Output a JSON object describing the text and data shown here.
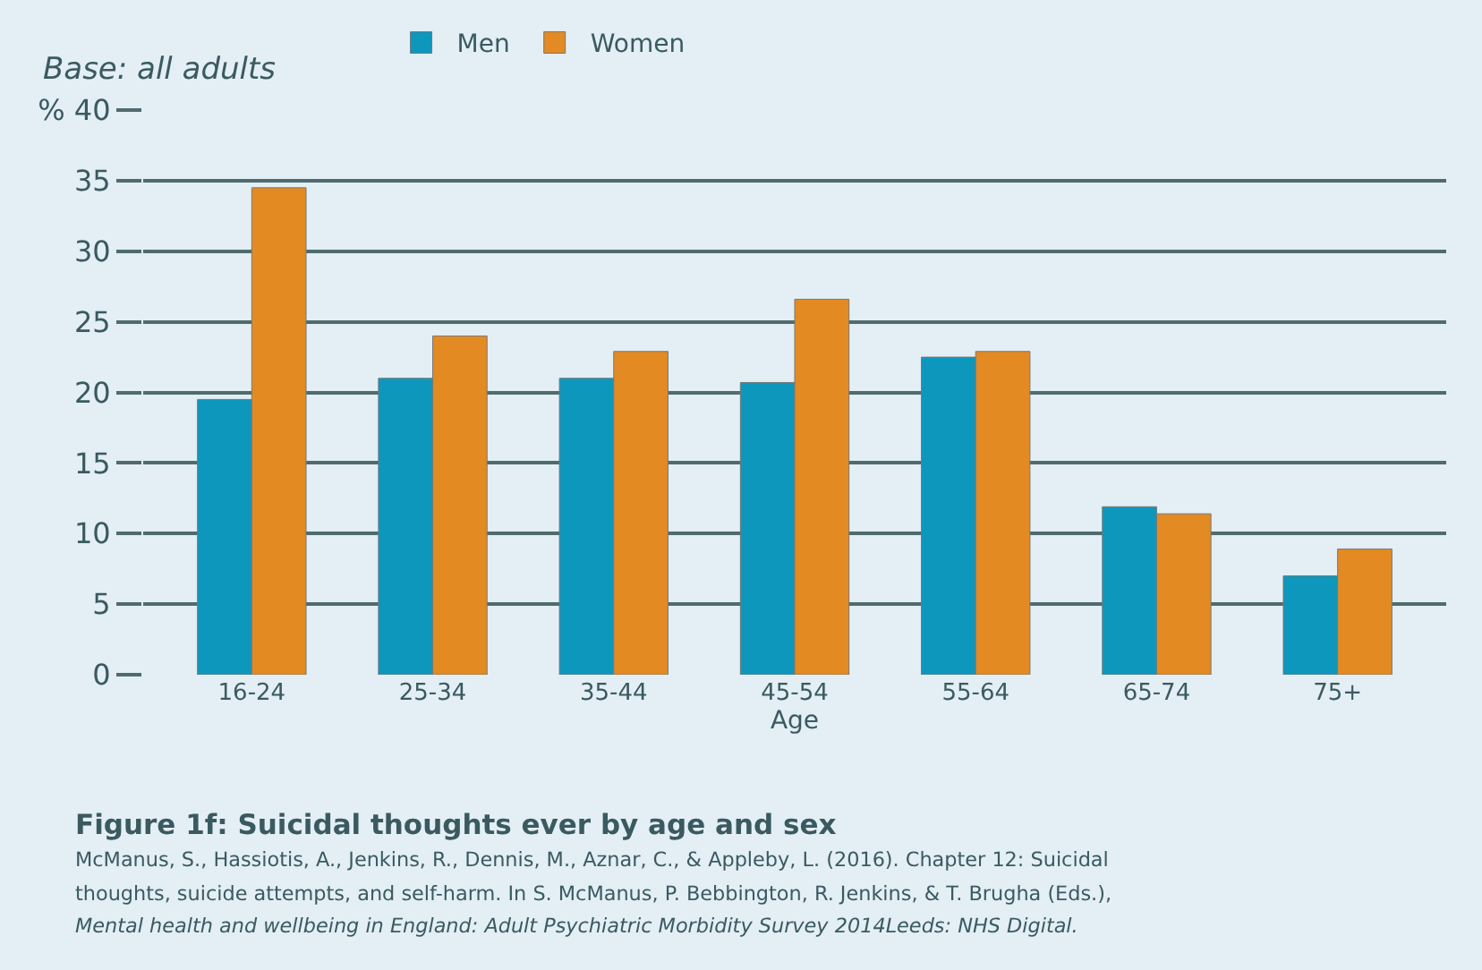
{
  "chart_data": {
    "type": "bar",
    "title": "Figure 1f: Suicidal thoughts ever by age and sex",
    "xlabel": "Age",
    "categories": [
      "16-24",
      "25-34",
      "35-44",
      "45-54",
      "55-64",
      "65-74",
      "75+"
    ],
    "series": [
      {
        "name": "Men",
        "color": "#0e97bd",
        "values": [
          19.5,
          21.0,
          21.0,
          20.7,
          22.5,
          11.9,
          7.0
        ]
      },
      {
        "name": "Women",
        "color": "#e38a22",
        "values": [
          34.5,
          24.0,
          22.9,
          26.6,
          22.9,
          11.4,
          8.9
        ]
      }
    ],
    "ylim": [
      0,
      40
    ],
    "yticks": [
      0,
      5,
      10,
      15,
      20,
      25,
      30,
      35,
      {
        "value": 40,
        "label": "% 40"
      }
    ],
    "grid": "y",
    "legend": "top",
    "annotations": [
      "Base: all adults",
      "McManus, S., Hassiotis, A., Jenkins, R., Dennis, M., Aznar, C., & Appleby, L. (2016). Chapter 12: Suicidal",
      "thoughts, suicide attempts, and self-harm. In S. McManus, P. Bebbington, R. Jenkins, & T. Brugha (Eds.),",
      "Mental health and wellbeing in England: Adult Psychiatric Morbidity Survey 2014Leeds: NHS Digital."
    ]
  }
}
